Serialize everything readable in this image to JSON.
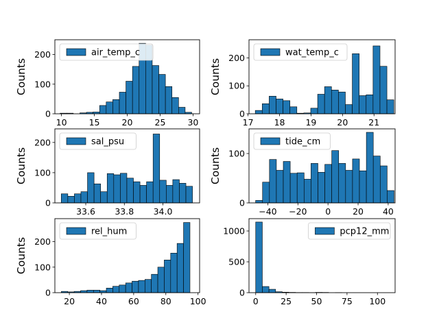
{
  "chart_data": [
    {
      "type": "bar",
      "legend": "air_temp_c",
      "legend_loc": "upper-left",
      "ylabel": "Counts",
      "xlim": [
        9,
        31
      ],
      "ylim": [
        0,
        250
      ],
      "xticks": [
        10,
        15,
        20,
        25,
        30
      ],
      "yticks": [
        0,
        100,
        200
      ],
      "bin_edges": [
        9.8,
        10.8,
        11.8,
        12.8,
        13.8,
        14.8,
        15.8,
        16.8,
        17.8,
        18.8,
        19.8,
        20.8,
        21.8,
        22.8,
        23.8,
        24.8,
        25.8,
        26.8,
        27.8,
        28.8,
        29.8
      ],
      "counts": [
        2,
        2,
        0,
        3,
        5,
        6,
        28,
        40,
        48,
        73,
        110,
        160,
        238,
        232,
        163,
        133,
        92,
        55,
        22,
        5
      ]
    },
    {
      "type": "bar",
      "legend": "wat_temp_c",
      "legend_loc": "upper-left",
      "ylabel": "Counts",
      "xlim": [
        17.03,
        21.67
      ],
      "ylim": [
        0,
        265
      ],
      "xticks": [
        17,
        18,
        19,
        20,
        21
      ],
      "yticks": [
        0,
        100,
        200
      ],
      "bin_edges": [
        17.23,
        17.45,
        17.67,
        17.89,
        18.11,
        18.33,
        18.55,
        18.77,
        18.99,
        19.21,
        19.43,
        19.65,
        19.87,
        20.09,
        20.31,
        20.53,
        20.75,
        20.97,
        21.19,
        21.41,
        21.63
      ],
      "counts": [
        12,
        36,
        63,
        53,
        47,
        25,
        2,
        3,
        20,
        70,
        97,
        85,
        78,
        33,
        215,
        65,
        68,
        243,
        170,
        50
      ]
    },
    {
      "type": "bar",
      "legend": "sal_psu",
      "legend_loc": "upper-left",
      "ylabel": "Counts",
      "xlim": [
        33.44,
        34.19
      ],
      "ylim": [
        0,
        245
      ],
      "xticks": [
        33.6,
        33.8,
        34.0
      ],
      "yticks": [
        0,
        100,
        200
      ],
      "bin_edges": [
        33.473,
        33.507,
        33.541,
        33.575,
        33.609,
        33.643,
        33.677,
        33.711,
        33.745,
        33.779,
        33.813,
        33.847,
        33.881,
        33.915,
        33.949,
        33.983,
        34.017,
        34.051,
        34.085,
        34.119,
        34.153
      ],
      "counts": [
        30,
        22,
        30,
        37,
        100,
        63,
        37,
        97,
        93,
        98,
        82,
        70,
        58,
        70,
        228,
        75,
        58,
        77,
        65,
        55
      ]
    },
    {
      "type": "bar",
      "legend": "tide_cm",
      "legend_loc": "upper-left",
      "ylabel": "Counts",
      "xlim": [
        -52.5,
        44.6
      ],
      "ylim": [
        0,
        150
      ],
      "xticks": [
        -40,
        -20,
        0,
        20,
        40
      ],
      "yticks": [
        0,
        100
      ],
      "bin_edges": [
        -48.1,
        -43.5,
        -38.9,
        -34.3,
        -29.7,
        -25.1,
        -20.5,
        -15.9,
        -11.3,
        -6.7,
        -2.1,
        2.5,
        7.1,
        11.7,
        16.3,
        20.9,
        25.5,
        30.1,
        34.7,
        39.3,
        43.9
      ],
      "counts": [
        5,
        42,
        88,
        66,
        84,
        60,
        61,
        48,
        80,
        62,
        78,
        106,
        80,
        66,
        89,
        65,
        143,
        95,
        75,
        25
      ]
    },
    {
      "type": "bar",
      "legend": "rel_hum",
      "legend_loc": "upper-left",
      "ylabel": "Counts",
      "xlim": [
        11,
        101
      ],
      "ylim": [
        0,
        290
      ],
      "xticks": [
        20,
        40,
        60,
        80,
        100
      ],
      "yticks": [
        0,
        100,
        200
      ],
      "bin_edges": [
        15,
        19,
        23,
        27,
        31,
        35,
        39,
        43,
        47,
        51,
        55,
        59,
        63,
        67,
        71,
        75,
        79,
        83,
        87,
        91,
        95
      ],
      "counts": [
        5,
        3,
        5,
        8,
        10,
        10,
        8,
        18,
        25,
        30,
        38,
        45,
        48,
        52,
        72,
        100,
        128,
        155,
        193,
        275
      ]
    },
    {
      "type": "bar",
      "legend": "pcp12_mm",
      "legend_loc": "upper-right",
      "ylabel": "",
      "xlim": [
        -5.5,
        114.5
      ],
      "ylim": [
        0,
        1200
      ],
      "xticks": [
        0,
        25,
        50,
        75,
        100
      ],
      "yticks": [
        0,
        500,
        1000
      ],
      "bin_edges": [
        0,
        5.45,
        10.9,
        16.35,
        21.8,
        27.25,
        32.7,
        38.15,
        43.6,
        49.05,
        54.5,
        59.95,
        65.4,
        70.85,
        76.3,
        81.75,
        87.2,
        92.65,
        98.1,
        103.55,
        109
      ],
      "counts": [
        1145,
        100,
        55,
        15,
        8,
        5,
        3,
        3,
        2,
        5,
        4,
        0,
        2,
        0,
        0,
        0,
        0,
        0,
        0,
        0
      ]
    }
  ]
}
